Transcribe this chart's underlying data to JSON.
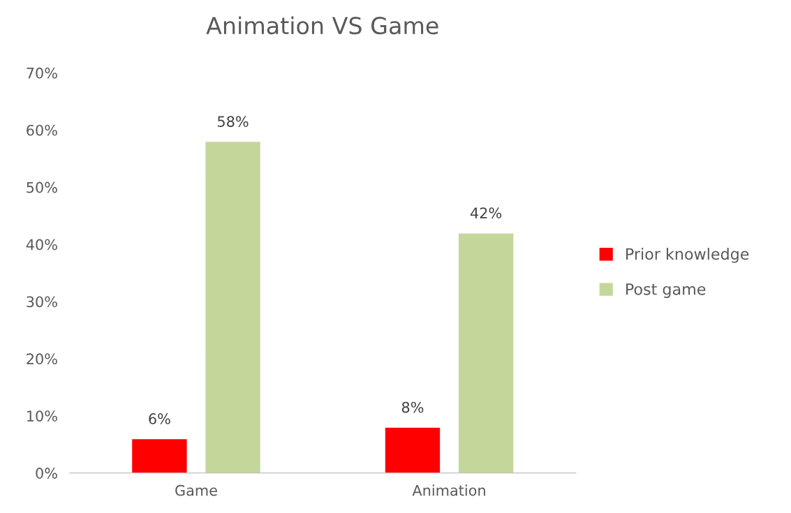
{
  "chart_data": {
    "type": "bar",
    "title": "Animation VS Game",
    "categories": [
      "Game",
      "Animation"
    ],
    "series": [
      {
        "name": "Prior knowledge",
        "color": "#ff0000",
        "values": [
          6,
          8
        ],
        "value_labels": [
          "6%",
          "8%"
        ]
      },
      {
        "name": "Post game",
        "color": "#c4d79b",
        "values": [
          58,
          42
        ],
        "value_labels": [
          "58%",
          "42%"
        ]
      }
    ],
    "ylim": [
      0,
      70
    ],
    "yticks": [
      {
        "value": 0,
        "label": "0%"
      },
      {
        "value": 10,
        "label": "10%"
      },
      {
        "value": 20,
        "label": "20%"
      },
      {
        "value": 30,
        "label": "30%"
      },
      {
        "value": 40,
        "label": "40%"
      },
      {
        "value": 50,
        "label": "50%"
      },
      {
        "value": 60,
        "label": "60%"
      },
      {
        "value": 70,
        "label": "70%"
      }
    ],
    "grid": false,
    "legend": "right"
  }
}
